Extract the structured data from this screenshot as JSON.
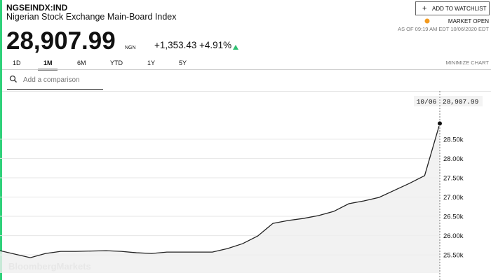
{
  "header": {
    "symbol": "NGSEINDX:IND",
    "name": "Nigerian Stock Exchange Main-Board Index",
    "price": "28,907.99",
    "currency": "NGN",
    "change": "+1,353.43",
    "change_percent": "+4.91%",
    "watchlist_button": "ADD TO WATCHLIST",
    "market_status": "MARKET OPEN",
    "as_of": "AS OF 09:19 AM EDT 10/06/2020 EDT"
  },
  "ranges": [
    "1D",
    "1M",
    "6M",
    "YTD",
    "1Y",
    "5Y"
  ],
  "active_range": "1M",
  "minimize": "MINIMIZE CHART",
  "comparison_placeholder": "Add a comparison",
  "watermark": "BloombergMarkets",
  "chart_data": {
    "type": "area",
    "categories": [
      null,
      null,
      null,
      null,
      null,
      null,
      null,
      null,
      null,
      null,
      null,
      null,
      null,
      null,
      null,
      null,
      null,
      null,
      null,
      null,
      null,
      null,
      null,
      null,
      null,
      null,
      null,
      null,
      null,
      "10/06"
    ],
    "values": [
      25609,
      25518,
      25427,
      25536,
      25590,
      25590,
      25600,
      25609,
      25590,
      25555,
      25536,
      25573,
      25573,
      25573,
      25573,
      25664,
      25791,
      25991,
      26318,
      26391,
      26445,
      26518,
      26627,
      26827,
      26900,
      26991,
      27173,
      27355,
      27555,
      28907.99
    ],
    "value_labels": [
      null,
      null,
      null,
      null,
      null,
      null,
      null,
      null,
      null,
      null,
      null,
      null,
      null,
      null,
      null,
      null,
      null,
      null,
      null,
      null,
      null,
      null,
      null,
      null,
      null,
      null,
      null,
      null,
      null,
      "28,907.99"
    ],
    "color": "#222222",
    "fill": "#efefef",
    "ylim": [
      25030,
      29750
    ],
    "yticks": [
      {
        "value": 25500,
        "label": "25.50k"
      },
      {
        "value": 26000,
        "label": "26.00k"
      },
      {
        "value": 26500,
        "label": "26.50k"
      },
      {
        "value": 27000,
        "label": "27.00k"
      },
      {
        "value": 27500,
        "label": "27.50k"
      },
      {
        "value": 28000,
        "label": "28.00k"
      },
      {
        "value": 28500,
        "label": "28.50k"
      }
    ],
    "grid": true
  }
}
